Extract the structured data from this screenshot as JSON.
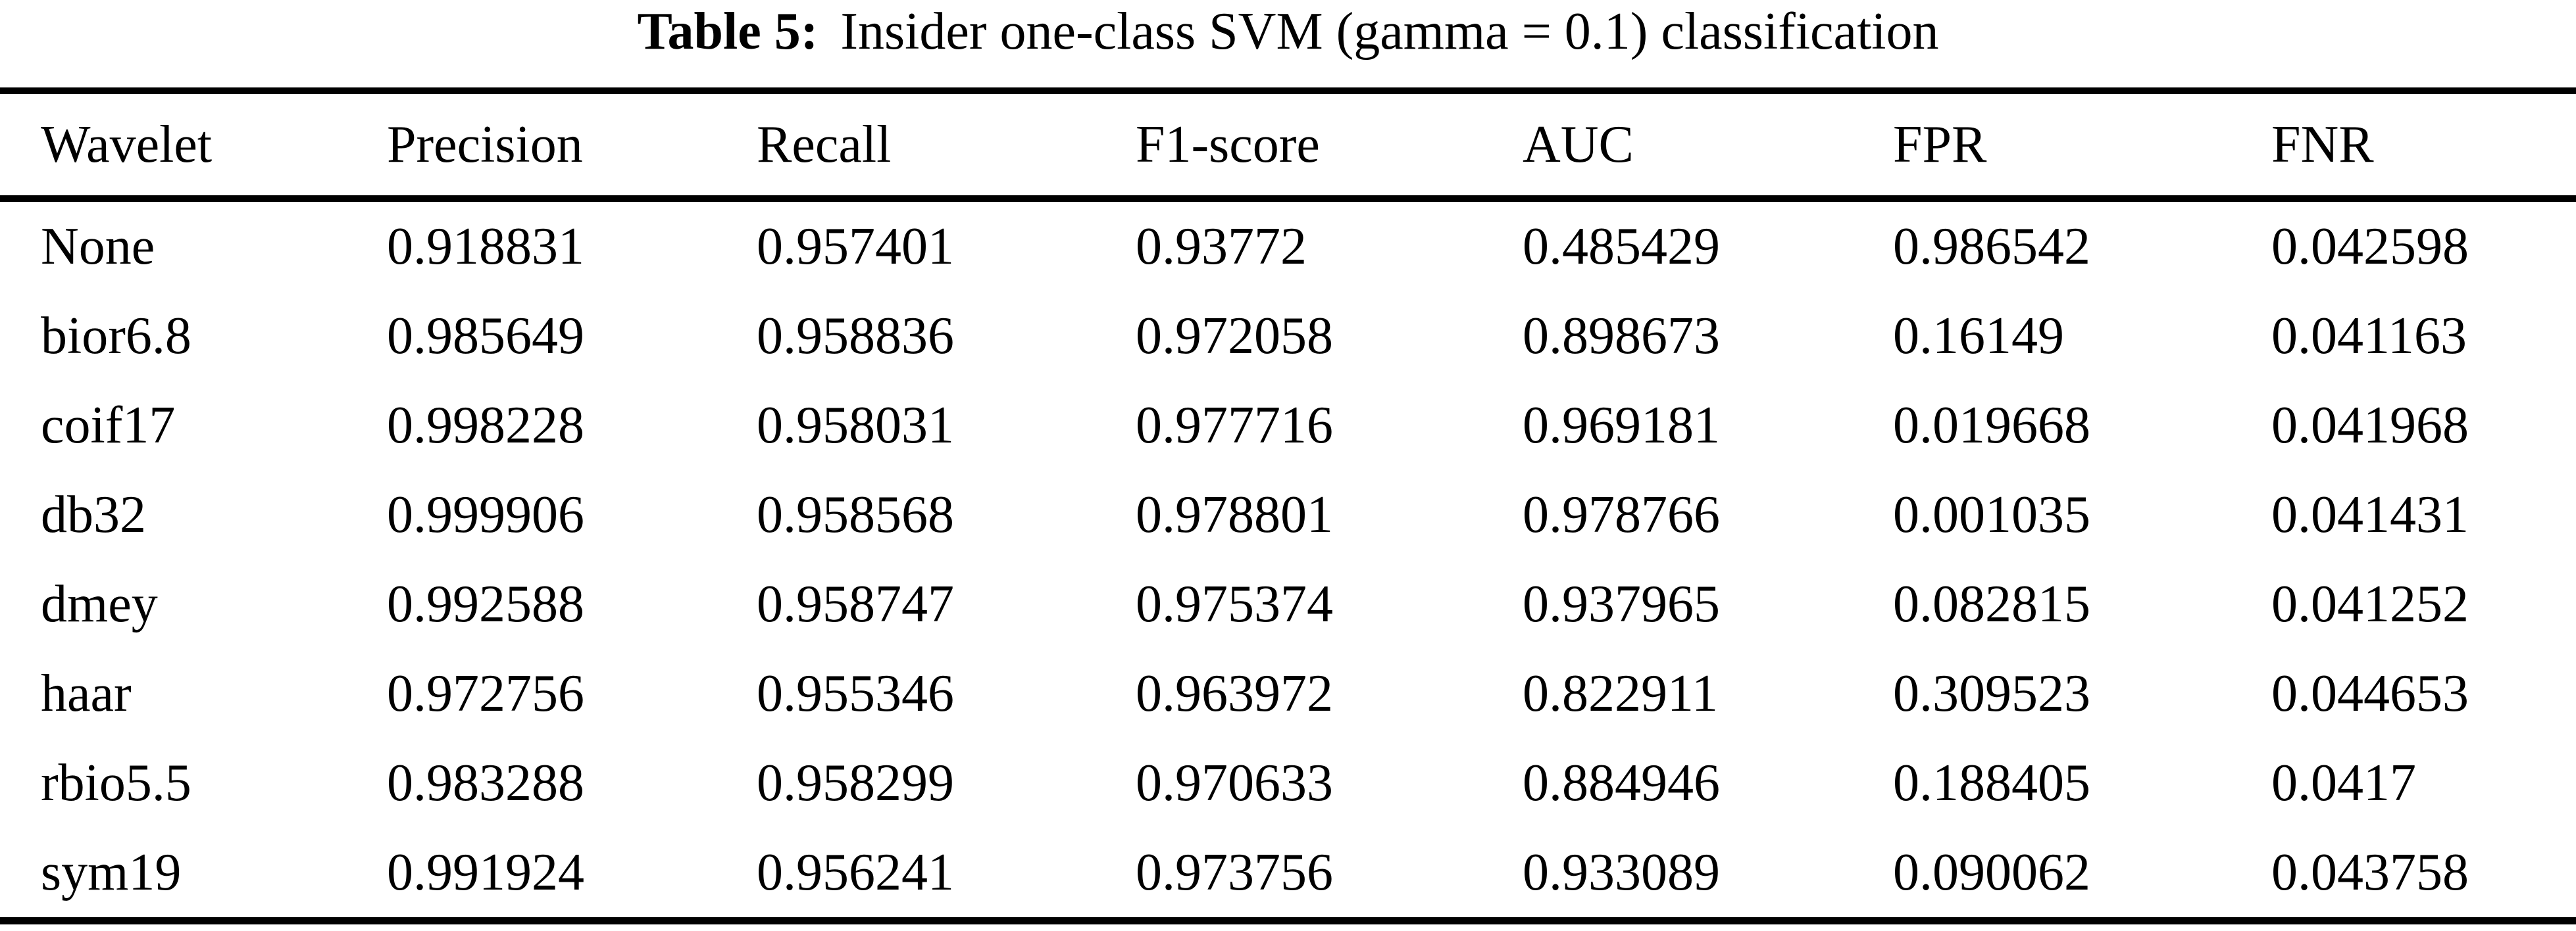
{
  "caption": {
    "label": "Table 5:",
    "text": "Insider one-class SVM (gamma = 0.1) classification"
  },
  "table": {
    "columns": [
      "Wavelet",
      "Precision",
      "Recall",
      "F1-score",
      "AUC",
      "FPR",
      "FNR"
    ],
    "rows": [
      [
        "None",
        "0.918831",
        "0.957401",
        "0.93772",
        "0.485429",
        "0.986542",
        "0.042598"
      ],
      [
        "bior6.8",
        "0.985649",
        "0.958836",
        "0.972058",
        "0.898673",
        "0.16149",
        "0.041163"
      ],
      [
        "coif17",
        "0.998228",
        "0.958031",
        "0.977716",
        "0.969181",
        "0.019668",
        "0.041968"
      ],
      [
        "db32",
        "0.999906",
        "0.958568",
        "0.978801",
        "0.978766",
        "0.001035",
        "0.041431"
      ],
      [
        "dmey",
        "0.992588",
        "0.958747",
        "0.975374",
        "0.937965",
        "0.082815",
        "0.041252"
      ],
      [
        "haar",
        "0.972756",
        "0.955346",
        "0.963972",
        "0.822911",
        "0.309523",
        "0.044653"
      ],
      [
        "rbio5.5",
        "0.983288",
        "0.958299",
        "0.970633",
        "0.884946",
        "0.188405",
        "0.0417"
      ],
      [
        "sym19",
        "0.991924",
        "0.956241",
        "0.973756",
        "0.933089",
        "0.090062",
        "0.043758"
      ]
    ]
  },
  "colors": {
    "text": "#000000",
    "background": "#ffffff",
    "rule": "#000000"
  }
}
